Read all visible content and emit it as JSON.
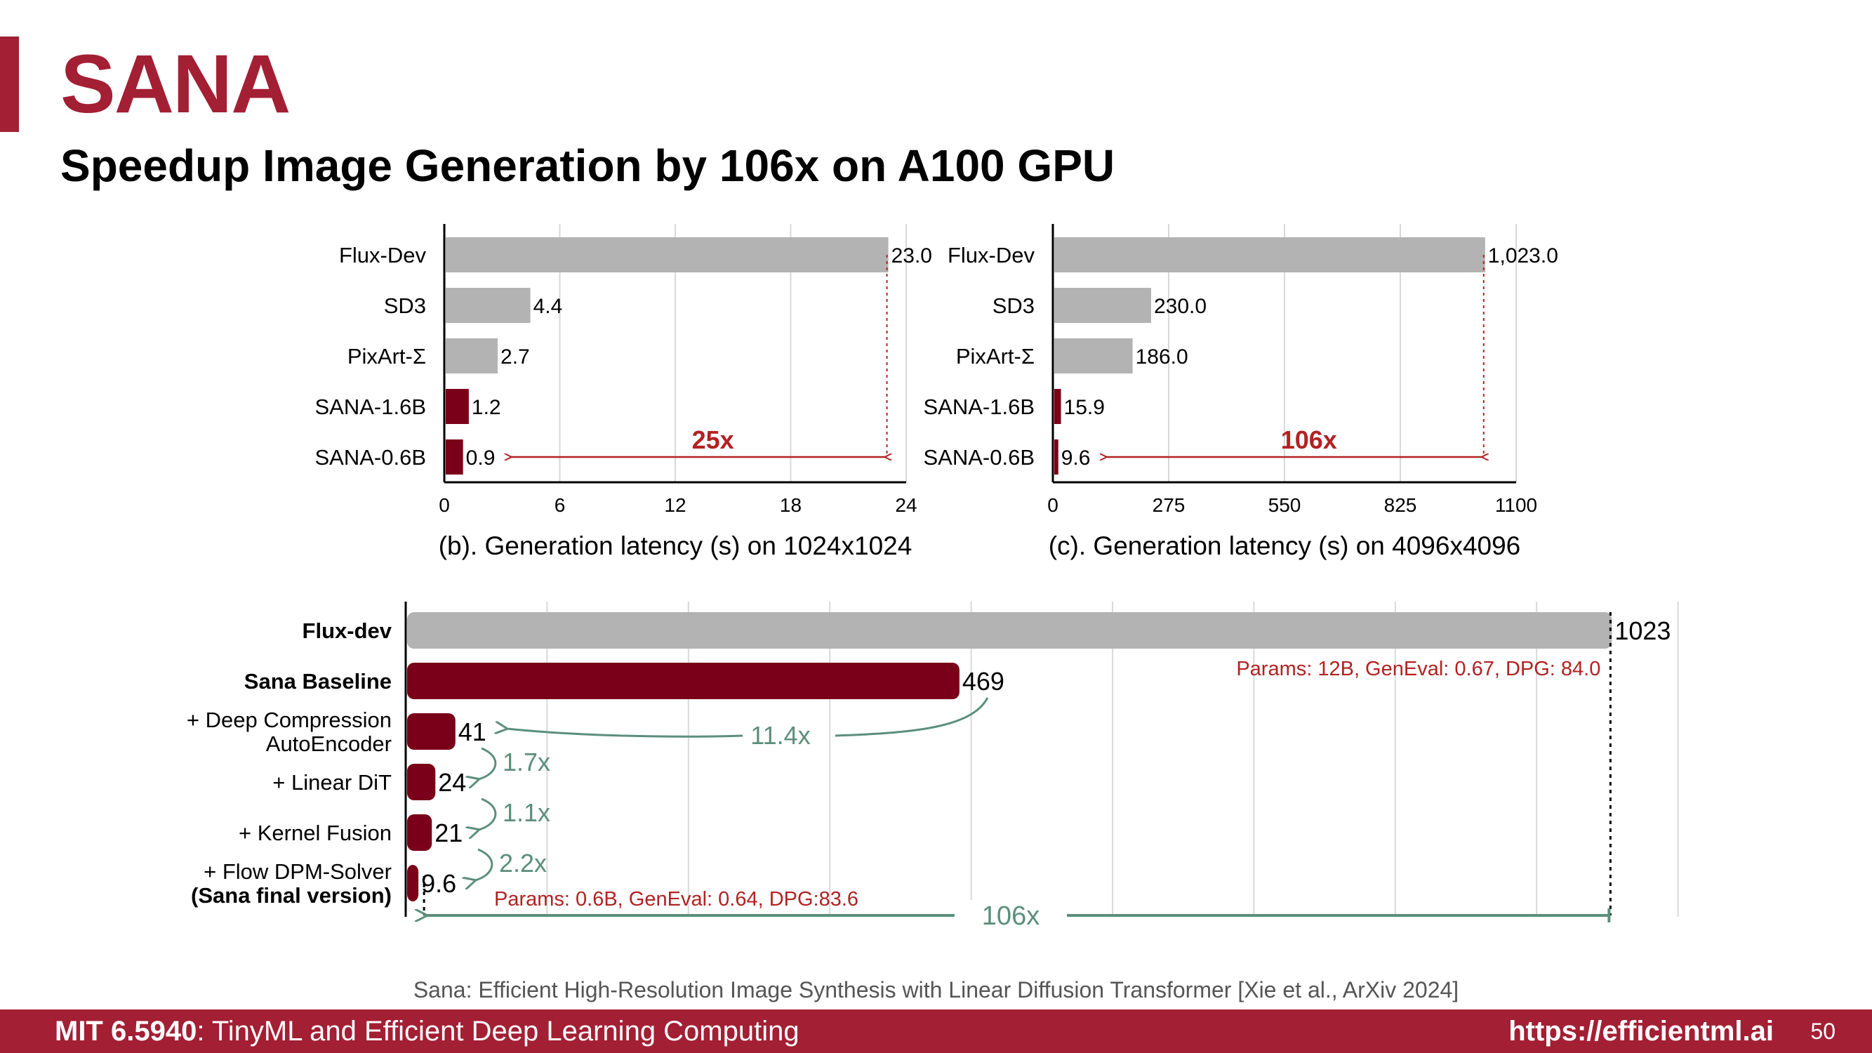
{
  "slide": {
    "title": "SANA",
    "subtitle": "Speedup Image Generation by 106x on A100 GPU",
    "citation": "Sana: Efficient High-Resolution Image Synthesis with Linear Diffusion Transformer [Xie et al., ArXiv 2024]",
    "footer": {
      "course_code": "MIT 6.5940",
      "course_name": ": TinyML and Efficient Deep Learning Computing",
      "url": "https://efficientml.ai",
      "page": "50"
    }
  },
  "colors": {
    "accent": "#a31f34",
    "sana": "#7a0019",
    "baseline": "#b3b3b3",
    "green": "#5b8f7b",
    "annot": "#b22222"
  },
  "chart_data": [
    {
      "type": "bar",
      "orientation": "horizontal",
      "title": "(b). Generation latency (s) on 1024x1024",
      "categories": [
        "Flux-Dev",
        "SD3",
        "PixArt-Σ",
        "SANA-1.6B",
        "SANA-0.6B"
      ],
      "values": [
        23.0,
        4.4,
        2.7,
        1.2,
        0.9
      ],
      "value_labels": [
        "23.0",
        "4.4",
        "2.7",
        "1.2",
        "0.9"
      ],
      "highlight": [
        false,
        false,
        false,
        true,
        true
      ],
      "xlim": [
        0,
        24
      ],
      "xticks": [
        "0",
        "6",
        "12",
        "18",
        "24"
      ],
      "grid": true,
      "speedup_label": "25x"
    },
    {
      "type": "bar",
      "orientation": "horizontal",
      "title": "(c). Generation latency (s) on 4096x4096",
      "categories": [
        "Flux-Dev",
        "SD3",
        "PixArt-Σ",
        "SANA-1.6B",
        "SANA-0.6B"
      ],
      "values": [
        1023.0,
        230.0,
        186.0,
        15.9,
        9.6
      ],
      "value_labels": [
        "1,023.0",
        "230.0",
        "186.0",
        "15.9",
        "9.6"
      ],
      "highlight": [
        false,
        false,
        false,
        true,
        true
      ],
      "xlim": [
        0,
        1100
      ],
      "xticks": [
        "0",
        "275",
        "550",
        "825",
        "1100"
      ],
      "grid": true,
      "speedup_label": "106x"
    },
    {
      "type": "bar",
      "orientation": "horizontal",
      "categories": [
        {
          "lines": [
            "Flux-dev"
          ],
          "bold": [
            true
          ]
        },
        {
          "lines": [
            "Sana Baseline"
          ],
          "bold": [
            true
          ]
        },
        {
          "lines": [
            "+ Deep Compression",
            "AutoEncoder"
          ],
          "bold": [
            false,
            false
          ]
        },
        {
          "lines": [
            "+ Linear DiT"
          ],
          "bold": [
            false
          ]
        },
        {
          "lines": [
            "+ Kernel Fusion"
          ],
          "bold": [
            false
          ]
        },
        {
          "lines": [
            "+ Flow DPM-Solver",
            "(Sana final version)"
          ],
          "bold": [
            false,
            true
          ]
        }
      ],
      "values": [
        1023,
        469,
        41,
        24,
        21,
        9.6
      ],
      "value_labels": [
        "1023",
        "469",
        "41",
        "24",
        "21",
        "9.6"
      ],
      "highlight": [
        false,
        true,
        true,
        true,
        true,
        true
      ],
      "xlim": [
        0,
        1080
      ],
      "grid": true,
      "step_speedups": [
        "11.4x",
        "1.7x",
        "1.1x",
        "2.2x"
      ],
      "total_speedup": "106x",
      "annotations": [
        "Params: 12B, GenEval: 0.67, DPG: 84.0",
        "Params: 0.6B, GenEval: 0.64, DPG:83.6"
      ]
    }
  ]
}
